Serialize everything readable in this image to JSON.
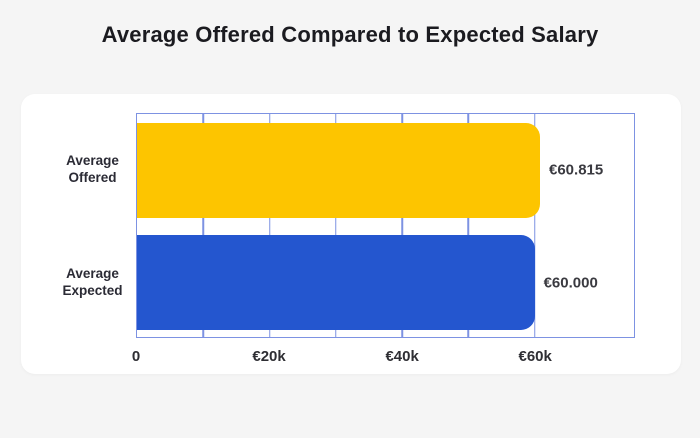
{
  "title": "Average Offered Compared to Expected Salary",
  "chart_data": {
    "type": "bar",
    "orientation": "horizontal",
    "title": "Average Offered Compared to Expected Salary",
    "categories": [
      "Average Offered",
      "Average Expected"
    ],
    "values": [
      60815,
      60000
    ],
    "value_labels": [
      "€60.815",
      "€60.000"
    ],
    "series": [
      {
        "name": "Average Offered",
        "value": 60815,
        "label": "€60.815",
        "color": "#fdc500"
      },
      {
        "name": "Average Expected",
        "value": 60000,
        "label": "€60.000",
        "color": "#2456cf"
      }
    ],
    "xlabel": "",
    "ylabel": "",
    "xlim": [
      0,
      75000
    ],
    "grid": true,
    "grid_interval": 10000,
    "grid_max": 60000,
    "legend": false,
    "x_ticks": [
      {
        "value": 0,
        "label": "0"
      },
      {
        "value": 20000,
        "label": "€20k"
      },
      {
        "value": 40000,
        "label": "€40k"
      },
      {
        "value": 60000,
        "label": "€60k"
      }
    ]
  },
  "colors": {
    "background": "#f5f5f5",
    "card": "#ffffff",
    "grid": "#7d92e2",
    "bar_offered": "#fdc500",
    "bar_expected": "#2456cf",
    "title_text": "#1b1b20",
    "category_text": "#2b2b35",
    "value_text": "#3a3a40",
    "tick_text": "#2e2e33"
  }
}
